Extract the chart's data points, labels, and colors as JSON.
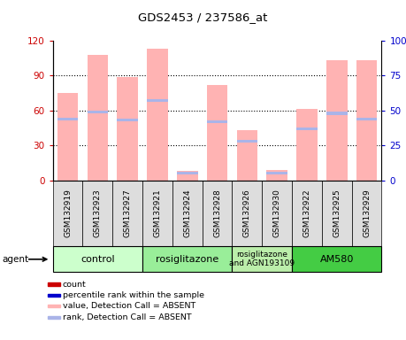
{
  "title": "GDS2453 / 237586_at",
  "samples": [
    "GSM132919",
    "GSM132923",
    "GSM132927",
    "GSM132921",
    "GSM132924",
    "GSM132928",
    "GSM132926",
    "GSM132930",
    "GSM132922",
    "GSM132925",
    "GSM132929"
  ],
  "bar_values": [
    75,
    108,
    89,
    113,
    8,
    82,
    43,
    9,
    61,
    103,
    103
  ],
  "rank_values": [
    44,
    49,
    43,
    57,
    5,
    42,
    28,
    5,
    37,
    48,
    44
  ],
  "ylim_left": [
    0,
    120
  ],
  "ylim_right": [
    0,
    100
  ],
  "yticks_left": [
    0,
    30,
    60,
    90,
    120
  ],
  "yticks_right": [
    0,
    25,
    50,
    75,
    100
  ],
  "bar_color": "#ffb3b3",
  "rank_color": "#aab4e8",
  "left_tick_color": "#cc0000",
  "right_tick_color": "#0000cc",
  "groups": [
    {
      "label": "control",
      "start": 0,
      "end": 3,
      "color": "#ccffcc"
    },
    {
      "label": "rosiglitazone",
      "start": 3,
      "end": 6,
      "color": "#99ee99"
    },
    {
      "label": "rosiglitazone\nand AGN193109",
      "start": 6,
      "end": 8,
      "color": "#bbeeaa"
    },
    {
      "label": "AM580",
      "start": 8,
      "end": 11,
      "color": "#44cc44"
    }
  ],
  "legend_items": [
    {
      "label": "count",
      "color": "#cc0000"
    },
    {
      "label": "percentile rank within the sample",
      "color": "#0000cc"
    },
    {
      "label": "value, Detection Call = ABSENT",
      "color": "#ffb3b3"
    },
    {
      "label": "rank, Detection Call = ABSENT",
      "color": "#aab4e8"
    }
  ],
  "agent_label": "agent",
  "tickbox_color": "#dddddd",
  "chart_bg": "#ffffff"
}
